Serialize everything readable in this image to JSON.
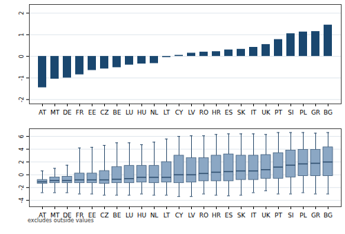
{
  "chart_data": [
    {
      "type": "bar",
      "categories": [
        "AT",
        "MT",
        "DE",
        "FR",
        "EE",
        "CZ",
        "BE",
        "LU",
        "HU",
        "NL",
        "LT",
        "CY",
        "LV",
        "RO",
        "HR",
        "ES",
        "SK",
        "IT",
        "UK",
        "PT",
        "SI",
        "PL",
        "GR",
        "BG"
      ],
      "values": [
        -1.45,
        -1.05,
        -1.0,
        -0.85,
        -0.65,
        -0.58,
        -0.52,
        -0.4,
        -0.35,
        -0.33,
        -0.05,
        0.05,
        0.15,
        0.2,
        0.22,
        0.3,
        0.33,
        0.42,
        0.55,
        0.78,
        1.05,
        1.13,
        1.15,
        1.45
      ],
      "color": "#1a476f",
      "ylim": [
        -2.2,
        2.4
      ],
      "yticks": [
        -2,
        -1,
        0,
        1,
        2
      ],
      "grid": true
    },
    {
      "type": "box",
      "categories": [
        "AT",
        "MT",
        "DE",
        "FR",
        "EE",
        "CZ",
        "BE",
        "LU",
        "HU",
        "NL",
        "LT",
        "CY",
        "LV",
        "RO",
        "HR",
        "ES",
        "SK",
        "IT",
        "UK",
        "PT",
        "SI",
        "PL",
        "GR",
        "BG"
      ],
      "whisker_low": [
        -2.8,
        -2.8,
        -2.8,
        -3.0,
        -3.0,
        -3.2,
        -3.2,
        -3.2,
        -3.0,
        -3.2,
        -3.2,
        -3.4,
        -3.4,
        -3.0,
        -3.2,
        -3.3,
        -3.2,
        -2.8,
        -2.5,
        -3.0,
        -3.0,
        -2.8,
        -3.0,
        -3.0
      ],
      "q1": [
        -1.4,
        -1.3,
        -1.3,
        -1.3,
        -1.3,
        -1.4,
        -1.3,
        -1.3,
        -1.2,
        -1.3,
        -1.2,
        -1.3,
        -1.2,
        -1.0,
        -1.0,
        -1.0,
        -0.8,
        -0.8,
        -0.6,
        -0.6,
        -0.4,
        -0.2,
        -0.2,
        -0.2
      ],
      "median": [
        -1.1,
        -0.9,
        -0.9,
        -0.8,
        -0.8,
        -0.8,
        -0.7,
        -0.6,
        -0.4,
        -0.4,
        -0.4,
        0.0,
        0.0,
        0.2,
        0.4,
        0.5,
        0.6,
        0.6,
        0.8,
        1.2,
        1.5,
        1.7,
        1.8,
        2.0
      ],
      "q3": [
        -0.8,
        -0.4,
        -0.3,
        0.2,
        0.2,
        0.6,
        1.2,
        1.4,
        1.4,
        1.4,
        2.0,
        3.0,
        2.6,
        2.6,
        3.0,
        3.2,
        3.0,
        3.0,
        3.1,
        3.4,
        3.8,
        3.9,
        3.9,
        4.3
      ],
      "whisker_high": [
        0.6,
        1.0,
        1.5,
        4.2,
        4.3,
        4.6,
        5.0,
        5.0,
        4.7,
        5.1,
        5.6,
        6.0,
        6.1,
        6.1,
        6.3,
        6.4,
        6.4,
        6.4,
        6.3,
        6.6,
        6.6,
        6.6,
        6.5,
        6.6
      ],
      "color": "#8ba7c4",
      "ylim": [
        -5,
        7.2
      ],
      "yticks": [
        -4,
        -2,
        0,
        2,
        4,
        6
      ],
      "grid": true,
      "caption": "excludes outside values"
    }
  ]
}
